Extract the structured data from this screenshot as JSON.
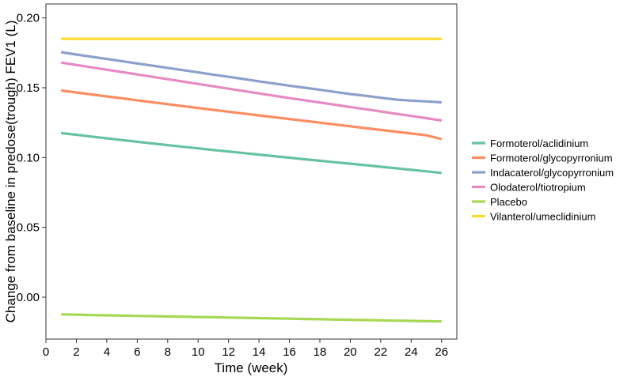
{
  "chart_data": {
    "type": "line",
    "title": "",
    "xlabel": "Time (week)",
    "ylabel": "Change from baseline in predose(trough) FEV1 (L)",
    "xlim": [
      0,
      27
    ],
    "ylim": [
      -0.03,
      0.21
    ],
    "x_ticks": [
      0,
      2,
      4,
      6,
      8,
      10,
      12,
      14,
      16,
      18,
      20,
      22,
      24,
      26
    ],
    "y_ticks": [
      0.0,
      0.05,
      0.1,
      0.15,
      0.2
    ],
    "y_tick_labels": [
      "0.00",
      "0.05",
      "0.10",
      "0.15",
      "0.20"
    ],
    "x": [
      1,
      2,
      3,
      4,
      5,
      6,
      7,
      8,
      9,
      10,
      11,
      12,
      13,
      14,
      15,
      16,
      17,
      18,
      19,
      20,
      21,
      22,
      23,
      24,
      25,
      26
    ],
    "legend_position": "right",
    "grid": false,
    "series": [
      {
        "name": "Formoterol/aclidinium",
        "color": "#66c2a5",
        "values": [
          0.1175,
          0.1163,
          0.115,
          0.1138,
          0.1125,
          0.1113,
          0.1101,
          0.1089,
          0.1077,
          0.1066,
          0.1054,
          0.1043,
          0.1032,
          0.1021,
          0.101,
          0.0999,
          0.0988,
          0.0977,
          0.0966,
          0.0956,
          0.0945,
          0.0934,
          0.0923,
          0.0912,
          0.0901,
          0.089
        ]
      },
      {
        "name": "Formoterol/glycopyrronium",
        "color": "#fc8d62",
        "values": [
          0.148,
          0.1466,
          0.1452,
          0.1438,
          0.1424,
          0.141,
          0.1396,
          0.1382,
          0.1368,
          0.1355,
          0.1341,
          0.1328,
          0.1315,
          0.1302,
          0.1289,
          0.1276,
          0.1263,
          0.125,
          0.1237,
          0.1224,
          0.1211,
          0.1198,
          0.1185,
          0.1172,
          0.1159,
          0.1132
        ]
      },
      {
        "name": "Indacaterol/glycopyrronium",
        "color": "#8da0cb",
        "values": [
          0.1755,
          0.1738,
          0.1722,
          0.1706,
          0.169,
          0.1674,
          0.1658,
          0.1642,
          0.1626,
          0.161,
          0.1594,
          0.1578,
          0.1562,
          0.1546,
          0.153,
          0.1515,
          0.15,
          0.1485,
          0.147,
          0.1455,
          0.1442,
          0.1428,
          0.1415,
          0.1408,
          0.1402,
          0.1395
        ]
      },
      {
        "name": "Olodaterol/tiotropium",
        "color": "#e78ac3",
        "values": [
          0.168,
          0.1663,
          0.1646,
          0.1629,
          0.1612,
          0.1595,
          0.1578,
          0.1561,
          0.1544,
          0.1527,
          0.151,
          0.1493,
          0.1476,
          0.1459,
          0.1442,
          0.1426,
          0.141,
          0.1394,
          0.1378,
          0.1362,
          0.1346,
          0.133,
          0.1314,
          0.1298,
          0.1282,
          0.1265
        ]
      },
      {
        "name": "Placebo",
        "color": "#a6d854",
        "values": [
          -0.0123,
          -0.0125,
          -0.0128,
          -0.013,
          -0.0132,
          -0.0134,
          -0.0136,
          -0.0138,
          -0.014,
          -0.0142,
          -0.0144,
          -0.0146,
          -0.0148,
          -0.015,
          -0.0152,
          -0.0154,
          -0.0156,
          -0.0158,
          -0.016,
          -0.0162,
          -0.0164,
          -0.0166,
          -0.0168,
          -0.017,
          -0.0172,
          -0.0174
        ]
      },
      {
        "name": "Vilanterol/umeclidinium",
        "color": "#ffd92f",
        "values": [
          0.185,
          0.185,
          0.185,
          0.185,
          0.185,
          0.185,
          0.185,
          0.185,
          0.185,
          0.185,
          0.185,
          0.185,
          0.185,
          0.185,
          0.185,
          0.185,
          0.185,
          0.185,
          0.185,
          0.185,
          0.185,
          0.185,
          0.185,
          0.185,
          0.185,
          0.185
        ]
      }
    ]
  }
}
